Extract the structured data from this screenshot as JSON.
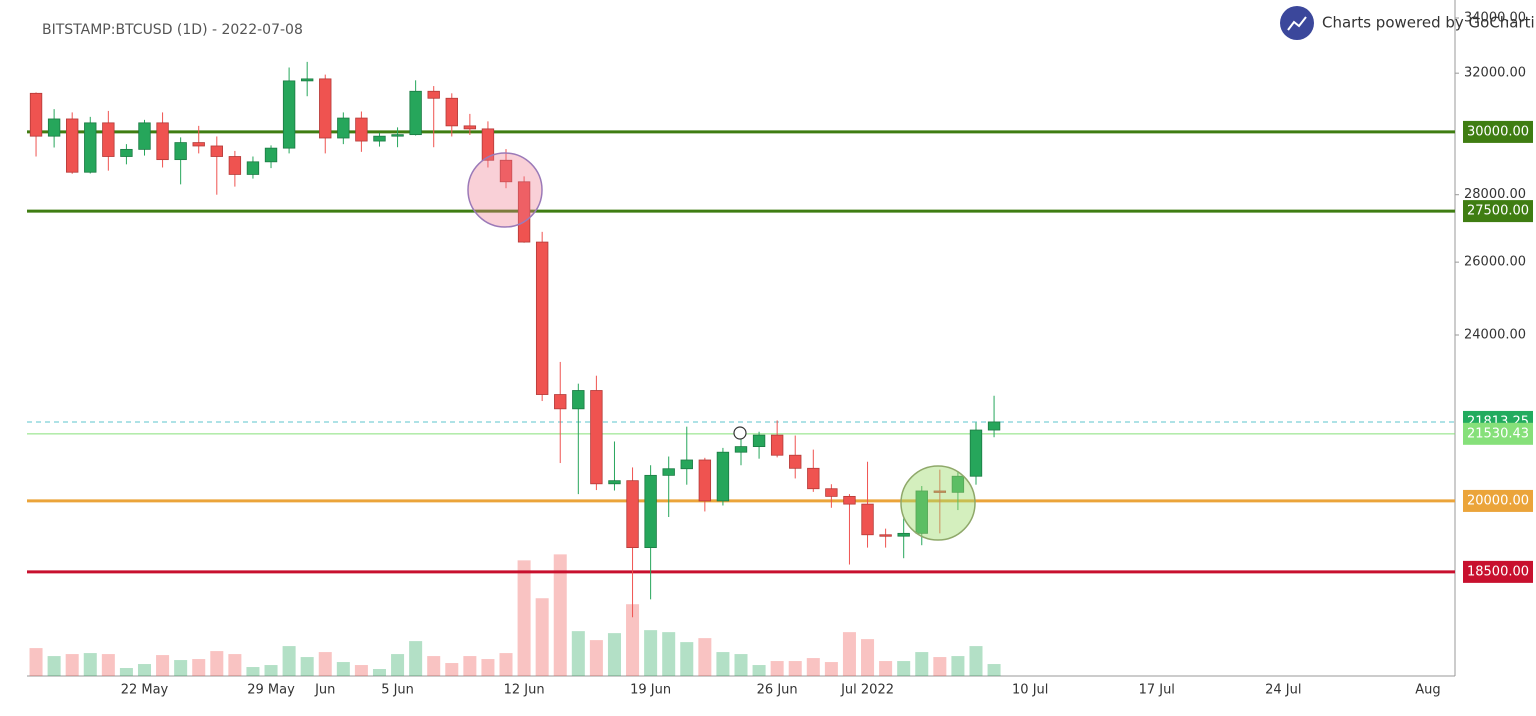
{
  "chart_data": {
    "type": "candlestick",
    "title": "BITSTAMP:BTCUSD (1D) - 2022-07-08",
    "badge": "Charts powered by GoCharting",
    "log_scale": true,
    "up_color": "#26a65b",
    "down_color": "#ef5350",
    "ylim": [
      16500,
      34000
    ],
    "yticks": [
      {
        "value": 24000,
        "label": "24000.00"
      },
      {
        "value": 26000,
        "label": "26000.00"
      },
      {
        "value": 28000,
        "label": "28000.00"
      },
      {
        "value": 32000,
        "label": "32000.00"
      },
      {
        "value": 34000,
        "label": "34000.00"
      }
    ],
    "volume_lim": [
      0,
      660
    ],
    "categories": [
      null,
      null,
      null,
      null,
      null,
      null,
      "22 May",
      null,
      null,
      null,
      null,
      null,
      null,
      "29 May",
      null,
      null,
      "Jun",
      null,
      null,
      null,
      "5 Jun",
      null,
      null,
      null,
      null,
      null,
      null,
      "12 Jun",
      null,
      null,
      null,
      null,
      null,
      null,
      "19 Jun",
      null,
      null,
      null,
      null,
      null,
      null,
      "26 Jun",
      null,
      null,
      null,
      null,
      "Jul 2022",
      null,
      null,
      null,
      null,
      null,
      null,
      null,
      null,
      "10 Jul",
      null,
      null,
      null,
      null,
      null,
      null,
      "17 Jul",
      null,
      null,
      null,
      null,
      null,
      null,
      "24 Jul",
      null,
      null,
      null,
      null,
      null,
      null,
      null,
      "Aug",
      null
    ],
    "open": [
      31300,
      29860,
      30430,
      28700,
      30300,
      29200,
      29430,
      30300,
      29100,
      29650,
      29540,
      29200,
      28630,
      29030,
      29470,
      31730,
      31800,
      29800,
      30460,
      29700,
      29860,
      29910,
      31370,
      31130,
      30200,
      30100,
      29080,
      28400,
      26580,
      22480,
      22130,
      22580,
      20380,
      20450,
      19000,
      20570,
      20720,
      20920,
      20000,
      21100,
      21230,
      21500,
      21030,
      20730,
      20270,
      20100,
      19930,
      19270,
      19240,
      19300,
      20220,
      20190,
      20550,
      21620,
      null,
      null,
      null,
      null,
      null,
      null,
      null,
      null,
      null,
      null,
      null,
      null,
      null,
      null,
      null,
      null,
      null,
      null,
      null,
      null,
      null,
      null,
      null,
      null,
      null
    ],
    "high": [
      31330,
      30760,
      30650,
      30500,
      30700,
      29600,
      30400,
      30650,
      29820,
      30200,
      29850,
      29380,
      29200,
      29560,
      32200,
      32400,
      31950,
      30650,
      30680,
      29970,
      30150,
      31750,
      31550,
      31300,
      30600,
      30350,
      29440,
      28570,
      26880,
      23300,
      22750,
      22950,
      21350,
      20750,
      20800,
      21000,
      21700,
      20970,
      21200,
      21530,
      21580,
      21850,
      21490,
      21160,
      20370,
      20150,
      20880,
      19400,
      19620,
      20330,
      20700,
      20640,
      21800,
      22450,
      null,
      null,
      null,
      null,
      null,
      null,
      null,
      null,
      null,
      null,
      null,
      null,
      null,
      null,
      null,
      null,
      null,
      null,
      null,
      null,
      null,
      null,
      null,
      null,
      null
    ],
    "low": [
      29200,
      29490,
      28650,
      28660,
      28750,
      28950,
      29230,
      28850,
      28320,
      29300,
      28000,
      28250,
      28500,
      28830,
      29300,
      31200,
      29300,
      29600,
      29350,
      29520,
      29500,
      29880,
      29500,
      29850,
      29900,
      28850,
      28200,
      26560,
      22320,
      20850,
      20150,
      20240,
      20230,
      17600,
      17950,
      19650,
      20360,
      19770,
      19900,
      20800,
      20950,
      20980,
      20500,
      20200,
      19850,
      18650,
      19000,
      19000,
      18780,
      19050,
      19300,
      19800,
      20360,
      21450,
      null,
      null,
      null,
      null,
      null,
      null,
      null,
      null,
      null,
      null,
      null,
      null,
      null,
      null,
      null,
      null,
      null,
      null,
      null,
      null,
      null,
      null,
      null,
      null,
      null
    ],
    "close": [
      29860,
      30430,
      28700,
      30300,
      29200,
      29430,
      30300,
      29100,
      29650,
      29540,
      29200,
      28630,
      29030,
      29470,
      31730,
      31800,
      29800,
      30460,
      29700,
      29860,
      29910,
      31370,
      31130,
      30200,
      30100,
      29080,
      28400,
      26580,
      22480,
      22130,
      22580,
      20380,
      20450,
      19000,
      20570,
      20720,
      20920,
      20000,
      21100,
      21230,
      21500,
      21030,
      20730,
      20270,
      20100,
      19930,
      19270,
      19240,
      19300,
      20220,
      20190,
      20550,
      21620,
      21813.25,
      null,
      null,
      null,
      null,
      null,
      null,
      null,
      null,
      null,
      null,
      null,
      null,
      null,
      null,
      null,
      null,
      null,
      null,
      null,
      null,
      null,
      null,
      null,
      null,
      null
    ],
    "volume": [
      28,
      20,
      22,
      23,
      22,
      8,
      12,
      21,
      16,
      17,
      25,
      22,
      9,
      11,
      30,
      19,
      24,
      14,
      11,
      7,
      22,
      35,
      20,
      13,
      20,
      17,
      23,
      116,
      78,
      122,
      45,
      36,
      43,
      72,
      46,
      44,
      34,
      38,
      24,
      22,
      11,
      15,
      15,
      18,
      14,
      44,
      37,
      15,
      15,
      24,
      19,
      20,
      30,
      12,
      null,
      null,
      null,
      null,
      null,
      null,
      null,
      null,
      null,
      null,
      null,
      null,
      null,
      null,
      null,
      null,
      null,
      null,
      null,
      null,
      null,
      null,
      null,
      null,
      null
    ],
    "levels": [
      {
        "value": 30000,
        "label": "30000.00",
        "color": "#3f7d12",
        "width": 3,
        "dashed": false
      },
      {
        "value": 27500,
        "label": "27500.00",
        "color": "#3f7d12",
        "width": 3,
        "dashed": false
      },
      {
        "value": 21813.25,
        "label": "21813.25",
        "color": "#22ab5e",
        "width": 1,
        "dashed": true
      },
      {
        "value": 21530.43,
        "label": "21530.43",
        "color": "#86e07a",
        "width": 1,
        "dashed": false
      },
      {
        "value": 20000,
        "label": "20000.00",
        "color": "#eba43a",
        "width": 3,
        "dashed": false
      },
      {
        "value": 18500,
        "label": "18500.00",
        "color": "#c8102e",
        "width": 3,
        "dashed": false
      }
    ]
  }
}
